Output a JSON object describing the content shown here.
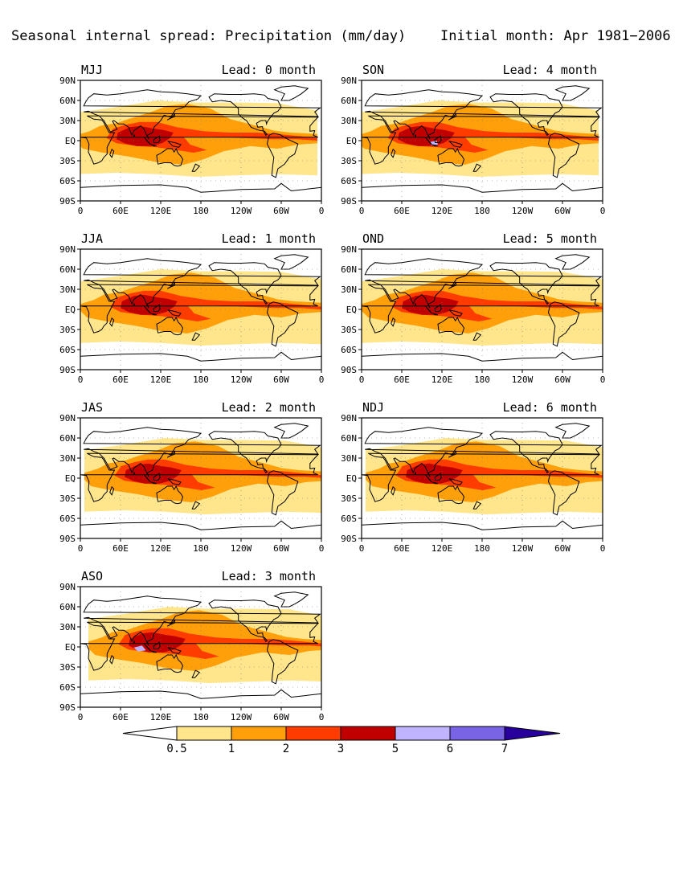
{
  "title": "Seasonal internal spread: Precipitation (mm/day)",
  "subtitle": "Initial month: Apr 1981−2006",
  "lead_label_prefix": "Lead:",
  "lead_label_suffix": "month",
  "lat_ticks": [
    "90N",
    "60N",
    "30N",
    "EQ",
    "30S",
    "60S",
    "90S"
  ],
  "lon_ticks": [
    "0",
    "60E",
    "120E",
    "180",
    "120W",
    "60W",
    "0"
  ],
  "panels": [
    {
      "season": "MJJ",
      "lead": "0"
    },
    {
      "season": "JJA",
      "lead": "1"
    },
    {
      "season": "JAS",
      "lead": "2"
    },
    {
      "season": "ASO",
      "lead": "3"
    },
    {
      "season": "SON",
      "lead": "4"
    },
    {
      "season": "OND",
      "lead": "5"
    },
    {
      "season": "NDJ",
      "lead": "6"
    }
  ],
  "colorbar": {
    "labels": [
      "0.5",
      "1",
      "2",
      "3",
      "5",
      "6",
      "7"
    ],
    "colors": [
      "#ffffff",
      "#ffe68c",
      "#ffa00a",
      "#ff3c00",
      "#c00000",
      "#c0b4ff",
      "#7a64e6",
      "#28009c"
    ]
  },
  "colors": {
    "lev1": "#ffe68c",
    "lev2": "#ffa00a",
    "lev3": "#ff3c00",
    "lev4": "#c00000",
    "lev5": "#c0b4ff"
  }
}
